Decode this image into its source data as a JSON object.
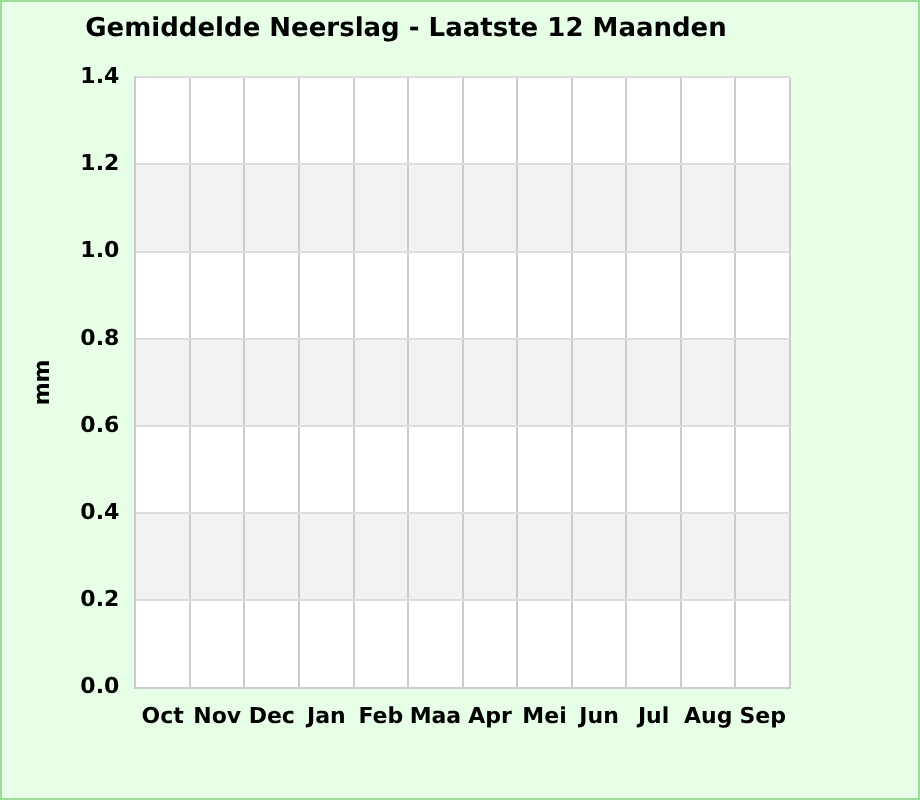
{
  "chart_data": {
    "type": "bar",
    "title": "Gemiddelde Neerslag - Laatste 12 Maanden",
    "ylabel": "mm",
    "categories": [
      "Oct",
      "Nov",
      "Dec",
      "Jan",
      "Feb",
      "Maa",
      "Apr",
      "Mei",
      "Jun",
      "Jul",
      "Aug",
      "Sep"
    ],
    "values": [
      0,
      0,
      0,
      0,
      0,
      0,
      0,
      0,
      0,
      0,
      0,
      0
    ],
    "ylim": [
      0,
      1.4
    ],
    "yticks": [
      {
        "value": 0,
        "label": "0.0"
      },
      0.2,
      0.4,
      0.6,
      0.8,
      {
        "value": 1,
        "label": "1.0"
      },
      1.2,
      1.4
    ],
    "grid": true,
    "bands": [
      {
        "axis": "y",
        "from": 0.2,
        "to": 0.4,
        "color": "#f2f2f2"
      },
      {
        "axis": "y",
        "from": 0.6,
        "to": 0.8,
        "color": "#f2f2f2"
      },
      {
        "axis": "y",
        "from": 1.0,
        "to": 1.2,
        "color": "#f2f2f2"
      }
    ]
  }
}
